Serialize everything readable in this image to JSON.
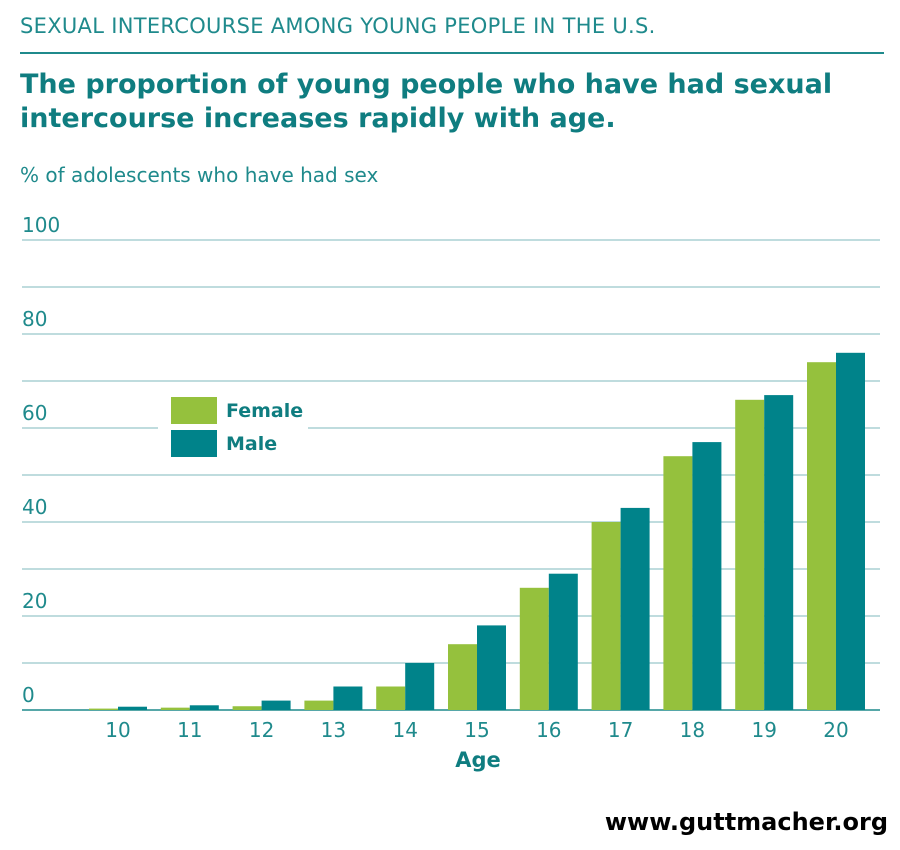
{
  "header": {
    "eyebrow": "SEXUAL INTERCOURSE AMONG YOUNG PEOPLE IN THE U.S.",
    "headline": "The proportion of young people who have had sexual intercourse increases rapidly with age."
  },
  "footer": {
    "url": "www.guttmacher.org"
  },
  "colors": {
    "female": "#95c13d",
    "male": "#00838a",
    "text": "#1f8a8c",
    "grid": "#7fb8bd"
  },
  "chart_data": {
    "type": "bar",
    "ylabel": "% of adolescents who have had sex",
    "xlabel": "Age",
    "categories": [
      "10",
      "11",
      "12",
      "13",
      "14",
      "15",
      "16",
      "17",
      "18",
      "19",
      "20"
    ],
    "series": [
      {
        "name": "Female",
        "values": [
          0.3,
          0.5,
          0.8,
          2,
          5,
          14,
          26,
          40,
          54,
          66,
          74
        ]
      },
      {
        "name": "Male",
        "values": [
          0.7,
          1,
          2,
          5,
          10,
          18,
          29,
          43,
          57,
          67,
          76
        ]
      }
    ],
    "ylim": [
      0,
      100
    ],
    "yticks": [
      0,
      20,
      40,
      60,
      80,
      100
    ],
    "grid": true,
    "legend": "left-middle"
  }
}
